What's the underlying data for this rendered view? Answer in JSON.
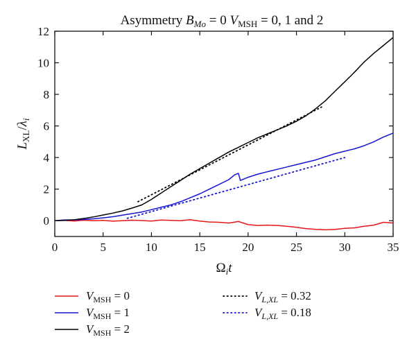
{
  "chart_data": {
    "type": "line",
    "title": "Asymmetry B_Mo = 0 V_MSH = 0, 1 and 2",
    "title_parts": {
      "prefix": "Asymmetry ",
      "b_symbol": "B",
      "b_sub": "Mo",
      "middle": " = 0 ",
      "v_symbol": "V",
      "v_sub": "MSH",
      "suffix": " = 0, 1 and 2"
    },
    "xlabel": "Ω_i t",
    "xlabel_parts": {
      "symbol": "Ω",
      "sub": "i",
      "after": "t"
    },
    "ylabel": "L_XL/λ_i",
    "ylabel_parts": {
      "L": "L",
      "L_sub": "XL",
      "slash": "/",
      "lambda": "λ",
      "lambda_sub": "i"
    },
    "xlim": [
      0,
      35
    ],
    "ylim": [
      -1,
      12
    ],
    "xticks": [
      0,
      5,
      10,
      15,
      20,
      25,
      30,
      35
    ],
    "yticks": [
      0,
      2,
      4,
      6,
      8,
      10,
      12
    ],
    "grid": false,
    "legend_position": "bottom",
    "series": [
      {
        "name": "V_MSH = 0",
        "legend": {
          "symbol": "V",
          "sub": "MSH",
          "value": " = 0"
        },
        "color": "#e8141b",
        "style": "solid",
        "x": [
          0,
          1,
          2,
          3,
          4,
          5,
          6,
          7,
          8,
          9,
          10,
          11,
          12,
          13,
          14,
          15,
          16,
          17,
          18,
          19,
          20,
          21,
          22,
          23,
          24,
          25,
          26,
          27,
          28,
          29,
          30,
          31,
          32,
          33,
          34,
          35
        ],
        "y": [
          0,
          0.02,
          -0.02,
          0.03,
          0.0,
          0.02,
          -0.03,
          0.0,
          0.03,
          0.01,
          -0.02,
          0.04,
          0.02,
          0.0,
          0.06,
          -0.02,
          -0.08,
          -0.1,
          -0.15,
          -0.05,
          -0.25,
          -0.3,
          -0.28,
          -0.3,
          -0.35,
          -0.42,
          -0.5,
          -0.55,
          -0.58,
          -0.55,
          -0.48,
          -0.45,
          -0.35,
          -0.28,
          -0.1,
          -0.15
        ]
      },
      {
        "name": "V_MSH = 1",
        "legend": {
          "symbol": "V",
          "sub": "MSH",
          "value": " = 1"
        },
        "color": "#1414d2",
        "style": "solid",
        "x": [
          0,
          1,
          2,
          3,
          4,
          5,
          6,
          7,
          8,
          9,
          10,
          11,
          12,
          13,
          14,
          15,
          16,
          17,
          18,
          18.6,
          19,
          19.2,
          20,
          21,
          22,
          23,
          24,
          25,
          26,
          27,
          28,
          29,
          30,
          31,
          32,
          33,
          34,
          35
        ],
        "y": [
          0,
          0.05,
          0.05,
          0.08,
          0.12,
          0.18,
          0.25,
          0.35,
          0.45,
          0.55,
          0.7,
          0.85,
          1.0,
          1.2,
          1.45,
          1.7,
          2.0,
          2.3,
          2.6,
          2.9,
          3.0,
          2.55,
          2.75,
          2.95,
          3.1,
          3.25,
          3.4,
          3.55,
          3.7,
          3.85,
          4.05,
          4.25,
          4.4,
          4.55,
          4.75,
          5.0,
          5.3,
          5.55
        ]
      },
      {
        "name": "V_MSH = 2",
        "legend": {
          "symbol": "V",
          "sub": "MSH",
          "value": " = 2"
        },
        "color": "#000000",
        "style": "solid",
        "x": [
          0,
          1,
          2,
          3,
          4,
          5,
          6,
          7,
          8,
          9,
          10,
          11,
          12,
          13,
          14,
          15,
          16,
          17,
          18,
          19,
          20,
          21,
          22,
          23,
          24,
          25,
          26,
          27,
          28,
          29,
          30,
          31,
          32,
          33,
          34,
          35
        ],
        "y": [
          0,
          0.02,
          0.06,
          0.14,
          0.24,
          0.36,
          0.48,
          0.62,
          0.8,
          1.0,
          1.35,
          1.75,
          2.15,
          2.55,
          2.95,
          3.3,
          3.65,
          4.0,
          4.35,
          4.65,
          4.95,
          5.25,
          5.5,
          5.75,
          6.0,
          6.3,
          6.65,
          7.1,
          7.6,
          8.2,
          8.8,
          9.4,
          10.05,
          10.6,
          11.1,
          11.6
        ]
      },
      {
        "name": "V_L,XL = 0.32",
        "legend": {
          "symbol": "V",
          "sub": "L,XL",
          "value": " = 0.32"
        },
        "color": "#000000",
        "style": "dotted",
        "x": [
          8.6,
          27.6
        ],
        "y": [
          1.2,
          7.2
        ]
      },
      {
        "name": "V_L,XL = 0.18",
        "legend": {
          "symbol": "V",
          "sub": "L,XL",
          "value": " = 0.18"
        },
        "color": "#1414d2",
        "style": "dotted",
        "x": [
          7.5,
          30.0
        ],
        "y": [
          0.15,
          4.0
        ]
      }
    ]
  }
}
